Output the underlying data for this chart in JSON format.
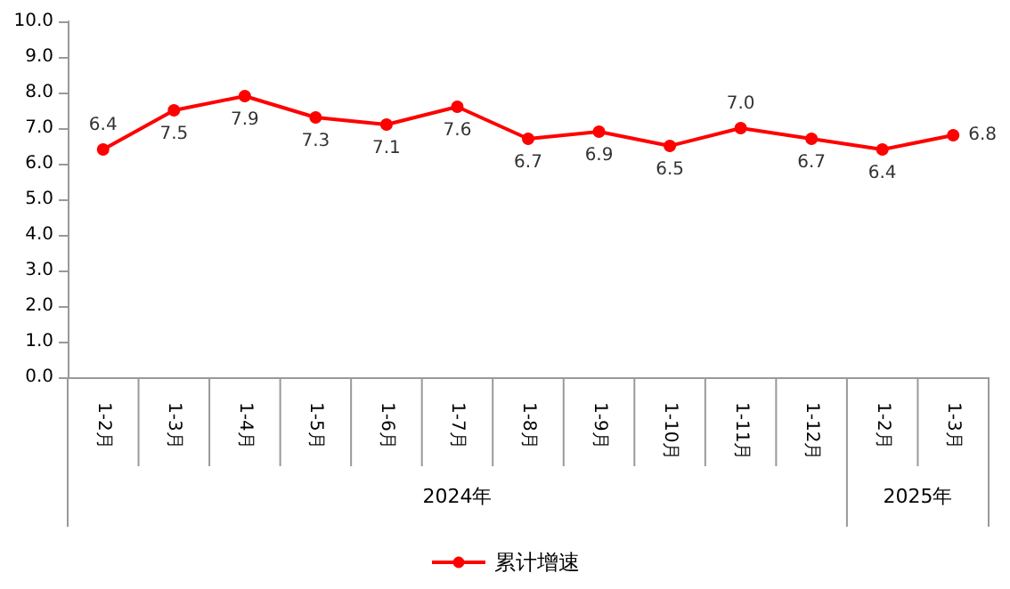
{
  "chart_data": {
    "type": "line",
    "categories": [
      "1-2月",
      "1-3月",
      "1-4月",
      "1-5月",
      "1-6月",
      "1-7月",
      "1-8月",
      "1-9月",
      "1-10月",
      "1-11月",
      "1-12月",
      "1-2月",
      "1-3月"
    ],
    "series": [
      {
        "name": "累计增速",
        "color": "#ff0000",
        "values": [
          6.4,
          7.5,
          7.9,
          7.3,
          7.1,
          7.6,
          6.7,
          6.9,
          6.5,
          7.0,
          6.7,
          6.4,
          6.8
        ]
      }
    ],
    "ylim": [
      0,
      10
    ],
    "yticks": [
      {
        "value": 0,
        "label": "0.0"
      },
      {
        "value": 1,
        "label": "1.0"
      },
      {
        "value": 2,
        "label": "2.0"
      },
      {
        "value": 3,
        "label": "3.0"
      },
      {
        "value": 4,
        "label": "4.0"
      },
      {
        "value": 5,
        "label": "5.0"
      },
      {
        "value": 6,
        "label": "6.0"
      },
      {
        "value": 7,
        "label": "7.0"
      },
      {
        "value": 8,
        "label": "8.0"
      },
      {
        "value": 9,
        "label": "9.0"
      },
      {
        "value": 10,
        "label": "10.0"
      }
    ],
    "annotations": [
      "2024年",
      "2025年"
    ],
    "value_labels": [
      "6.4",
      "7.5",
      "7.9",
      "7.3",
      "7.1",
      "7.6",
      "6.7",
      "6.9",
      "6.5",
      "7.0",
      "6.7",
      "6.4",
      "6.8"
    ],
    "marker": "circle",
    "line_style": "solid",
    "grid": false,
    "legend": "bottom"
  }
}
